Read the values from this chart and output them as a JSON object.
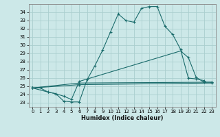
{
  "xlabel": "Humidex (Indice chaleur)",
  "background_color": "#cce8e8",
  "grid_color": "#aacece",
  "line_color": "#1a6b6b",
  "xlim": [
    -0.5,
    23.5
  ],
  "ylim": [
    22.5,
    35.0
  ],
  "yticks": [
    23,
    24,
    25,
    26,
    27,
    28,
    29,
    30,
    31,
    32,
    33,
    34
  ],
  "xticks": [
    0,
    1,
    2,
    3,
    4,
    5,
    6,
    7,
    8,
    9,
    10,
    11,
    12,
    13,
    14,
    15,
    16,
    17,
    18,
    19,
    20,
    21,
    22,
    23
  ],
  "line1": [
    [
      0,
      24.8
    ],
    [
      1,
      24.8
    ],
    [
      2,
      24.3
    ],
    [
      3,
      24.1
    ],
    [
      4,
      23.2
    ],
    [
      5,
      23.1
    ],
    [
      6,
      23.1
    ],
    [
      7,
      25.8
    ],
    [
      8,
      27.5
    ],
    [
      9,
      29.4
    ],
    [
      10,
      31.6
    ],
    [
      11,
      33.8
    ],
    [
      12,
      33.0
    ],
    [
      13,
      32.8
    ],
    [
      14,
      34.5
    ],
    [
      15,
      34.7
    ],
    [
      16,
      34.7
    ],
    [
      17,
      32.3
    ],
    [
      18,
      31.3
    ],
    [
      19,
      29.5
    ],
    [
      20,
      26.0
    ],
    [
      21,
      25.9
    ],
    [
      22,
      25.7
    ]
  ],
  "line2": [
    [
      0,
      24.8
    ],
    [
      2,
      24.3
    ],
    [
      3,
      24.1
    ],
    [
      4,
      23.8
    ],
    [
      5,
      23.4
    ],
    [
      6,
      25.6
    ],
    [
      19,
      29.3
    ],
    [
      20,
      28.5
    ],
    [
      21,
      26.1
    ],
    [
      22,
      25.5
    ],
    [
      23,
      25.5
    ]
  ],
  "line3": [
    [
      0,
      24.8
    ],
    [
      6,
      25.4
    ],
    [
      23,
      25.5
    ]
  ],
  "line4": [
    [
      0,
      24.8
    ],
    [
      6,
      25.2
    ],
    [
      23,
      25.4
    ]
  ]
}
